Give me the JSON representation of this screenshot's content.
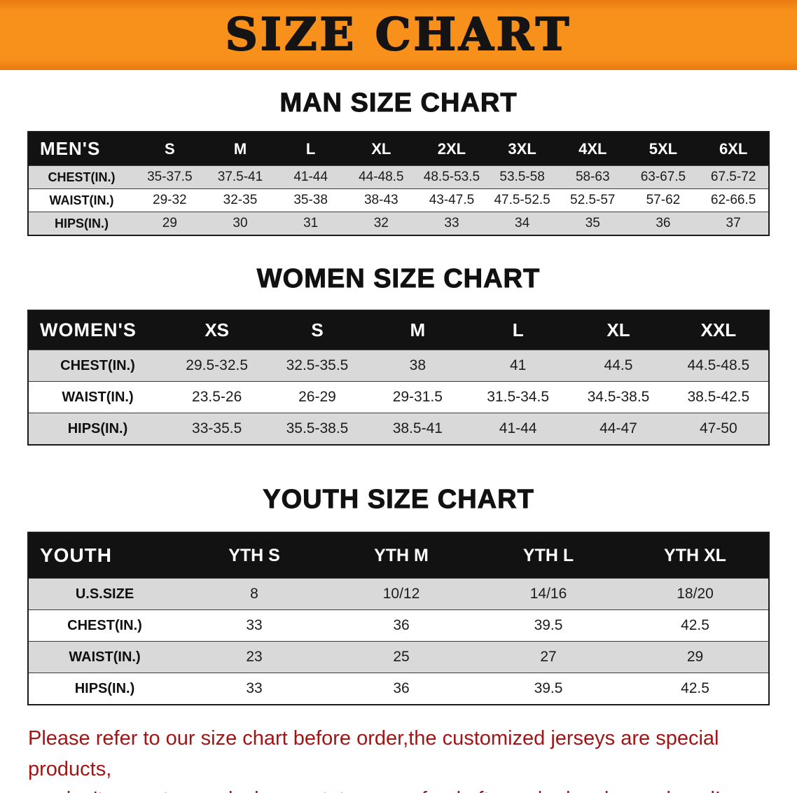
{
  "banner": {
    "title": "SIZE CHART",
    "bg_color": "#F8911C",
    "text_color": "#141414"
  },
  "sections": [
    {
      "heading": "MAN SIZE CHART",
      "table": {
        "label": "MEN'S",
        "sizes": [
          "S",
          "M",
          "L",
          "XL",
          "2XL",
          "3XL",
          "4XL",
          "5XL",
          "6XL"
        ],
        "rows": [
          {
            "label": "CHEST(IN.)",
            "values": [
              "35-37.5",
              "37.5-41",
              "41-44",
              "44-48.5",
              "48.5-53.5",
              "53.5-58",
              "58-63",
              "63-67.5",
              "67.5-72"
            ]
          },
          {
            "label": "WAIST(IN.)",
            "values": [
              "29-32",
              "32-35",
              "35-38",
              "38-43",
              "43-47.5",
              "47.5-52.5",
              "52.5-57",
              "57-62",
              "62-66.5"
            ]
          },
          {
            "label": "HIPS(IN.)",
            "values": [
              "29",
              "30",
              "31",
              "32",
              "33",
              "34",
              "35",
              "36",
              "37"
            ]
          }
        ]
      }
    },
    {
      "heading": "WOMEN SIZE CHART",
      "table": {
        "label": "WOMEN'S",
        "sizes": [
          "XS",
          "S",
          "M",
          "L",
          "XL",
          "XXL"
        ],
        "rows": [
          {
            "label": "CHEST(IN.)",
            "values": [
              "29.5-32.5",
              "32.5-35.5",
              "38",
              "41",
              "44.5",
              "44.5-48.5"
            ]
          },
          {
            "label": "WAIST(IN.)",
            "values": [
              "23.5-26",
              "26-29",
              "29-31.5",
              "31.5-34.5",
              "34.5-38.5",
              "38.5-42.5"
            ]
          },
          {
            "label": "HIPS(IN.)",
            "values": [
              "33-35.5",
              "35.5-38.5",
              "38.5-41",
              "41-44",
              "44-47",
              "47-50"
            ]
          }
        ]
      }
    },
    {
      "heading": "YOUTH SIZE CHART",
      "table": {
        "label": "YOUTH",
        "sizes": [
          "YTH S",
          "YTH M",
          "YTH L",
          "YTH XL"
        ],
        "rows": [
          {
            "label": "U.S.SIZE",
            "values": [
              "8",
              "10/12",
              "14/16",
              "18/20"
            ]
          },
          {
            "label": "CHEST(IN.)",
            "values": [
              "33",
              "36",
              "39.5",
              "42.5"
            ]
          },
          {
            "label": "WAIST(IN.)",
            "values": [
              "23",
              "25",
              "27",
              "29"
            ]
          },
          {
            "label": "HIPS(IN.)",
            "values": [
              "33",
              "36",
              "39.5",
              "42.5"
            ]
          }
        ]
      }
    }
  ],
  "table_style": {
    "header_bg": "#121212",
    "header_text": "#FFFFFF",
    "stripe_gray": "#D9D9D9",
    "stripe_white": "#FFFFFF"
  },
  "footer": {
    "lines": [
      "Please refer to our size chart before order,the customized jerseys are special products,",
      "we don't accept cancel, change, teturn or refund after order has been placed!"
    ],
    "text_color": "#A31515"
  }
}
